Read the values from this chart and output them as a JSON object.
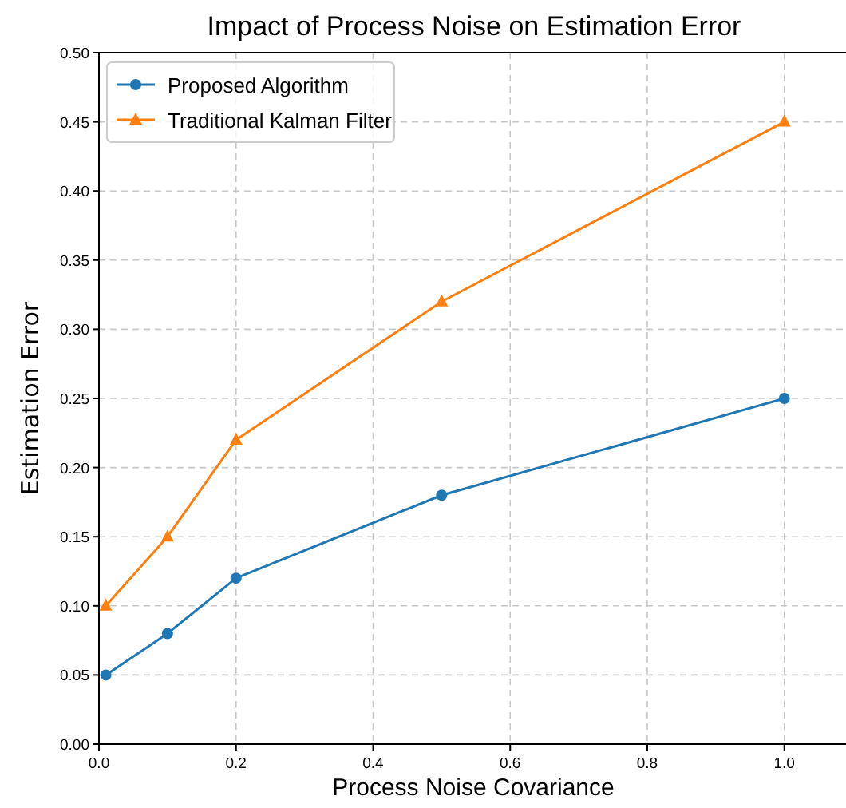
{
  "chart_data": {
    "type": "line",
    "title": "Impact of Process Noise on Estimation Error",
    "xlabel": "Process Noise Covariance",
    "ylabel": "Estimation Error",
    "x": [
      0.01,
      0.1,
      0.2,
      0.5,
      1.0
    ],
    "series": [
      {
        "name": "Proposed Algorithm",
        "color": "#1f77b4",
        "values": [
          0.05,
          0.08,
          0.12,
          0.18,
          0.25
        ],
        "marker": "circle"
      },
      {
        "name": "Traditional Kalman Filter",
        "color": "#ff7f0e",
        "values": [
          0.1,
          0.15,
          0.22,
          0.32,
          0.45
        ],
        "marker": "triangle"
      }
    ],
    "xlim": [
      0,
      1.09
    ],
    "xticks": [
      {
        "value": 0,
        "label": "0.0"
      },
      0.2,
      0.4,
      0.6,
      0.8,
      {
        "value": 1,
        "label": "1.0"
      }
    ],
    "ylim": [
      0,
      0.5
    ],
    "yticks": [
      {
        "value": 0,
        "label": "0.00"
      },
      0.05,
      {
        "value": 0.1,
        "label": "0.10"
      },
      0.15,
      {
        "value": 0.2,
        "label": "0.20"
      },
      0.25,
      {
        "value": 0.3,
        "label": "0.30"
      },
      0.35,
      {
        "value": 0.4,
        "label": "0.40"
      },
      0.45,
      {
        "value": 0.5,
        "label": "0.50"
      }
    ],
    "grid": true,
    "line_style": "solid",
    "legend": "top left"
  }
}
